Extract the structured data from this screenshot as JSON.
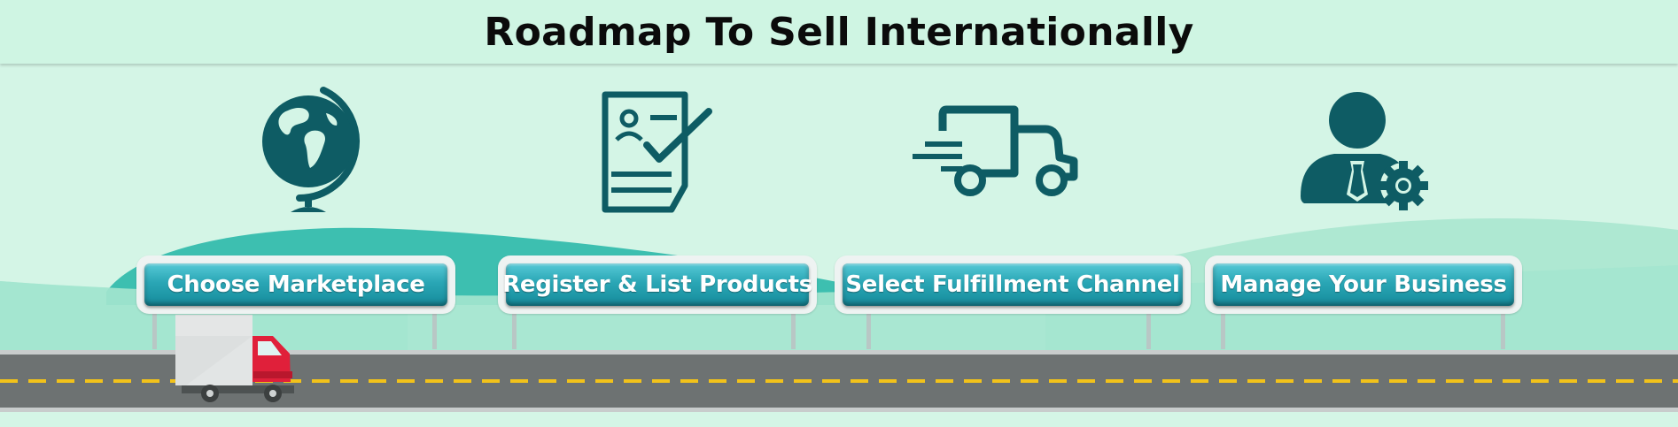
{
  "header": {
    "title": "Roadmap To Sell Internationally"
  },
  "steps": [
    {
      "label": "Choose Marketplace",
      "icon": "globe-icon"
    },
    {
      "label": "Register & List Products",
      "icon": "registration-form-icon"
    },
    {
      "label": "Select Fulfillment Channel",
      "icon": "delivery-truck-icon"
    },
    {
      "label": "Manage Your Business",
      "icon": "business-manager-icon"
    }
  ],
  "colors": {
    "background": "#d4f5e6",
    "icon": "#0e5c64",
    "sign": "#2aa6b5",
    "road": "#6d7272",
    "lane": "#f2c21a",
    "truck_cab": "#e0203a"
  }
}
